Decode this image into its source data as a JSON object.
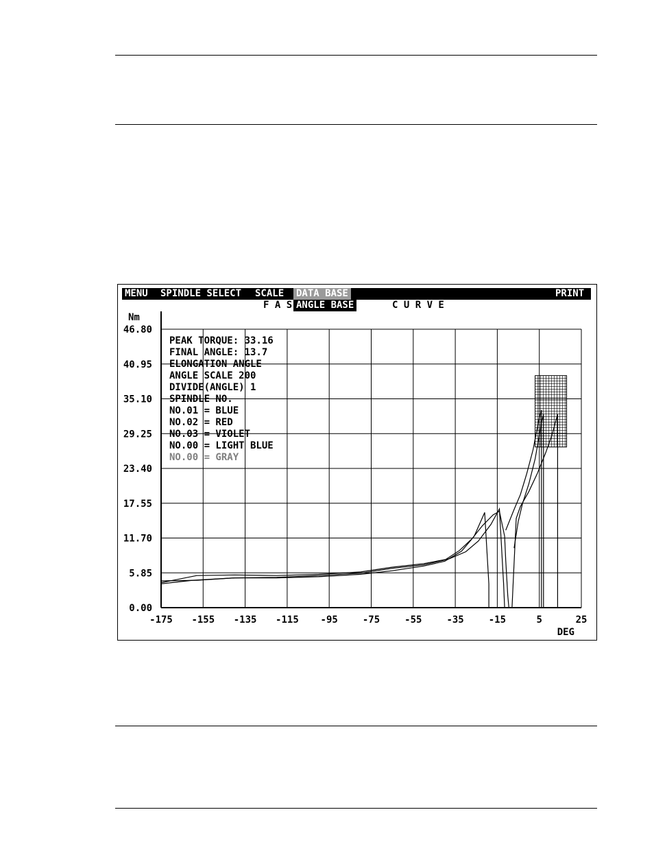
{
  "menu": {
    "items": [
      {
        "label": "MENU",
        "selected": false
      },
      {
        "label": "SPINDLE SELECT",
        "selected": false
      },
      {
        "label": "SCALE",
        "selected": false
      },
      {
        "label": "DATA BASE",
        "selected": true
      }
    ],
    "print_label": "PRINT"
  },
  "subtitle": {
    "left": "F A S",
    "mode": "ANGLE BASE",
    "right": "C U R V E"
  },
  "legend": {
    "lines": [
      {
        "text": "PEAK TORQUE:  33.16",
        "color": "#000000"
      },
      {
        "text": "FINAL ANGLE:   13.7",
        "color": "#000000"
      },
      {
        "text": "ELONGATION ANGLE",
        "color": "#000000"
      },
      {
        "text": "ANGLE  SCALE  200",
        "color": "#000000"
      },
      {
        "text": "DIVIDE(ANGLE)   1",
        "color": "#000000"
      },
      {
        "text": "SPINDLE NO.",
        "color": "#000000"
      },
      {
        "text": " NO.01 = BLUE",
        "color": "#000000"
      },
      {
        "text": " NO.02 = RED",
        "color": "#000000"
      },
      {
        "text": " NO.03 = VIOLET",
        "color": "#000000"
      },
      {
        "text": " NO.00 = LIGHT BLUE",
        "color": "#000000"
      },
      {
        "text": " NO.00 = GRAY",
        "color": "#808080"
      }
    ]
  },
  "chart_data": {
    "type": "line",
    "ylabel": "Nm",
    "xlabel": "DEG",
    "xlim": [
      -175,
      25
    ],
    "ylim": [
      0,
      46.8
    ],
    "x_ticks": [
      -175,
      -155,
      -135,
      -115,
      -95,
      -75,
      -55,
      -35,
      -15,
      5,
      25
    ],
    "y_ticks": [
      "0.00",
      "5.85",
      "11.70",
      "17.55",
      "23.40",
      "29.25",
      "35.10",
      "40.95",
      "46.80"
    ],
    "grid": true,
    "tolerance_box": {
      "x": [
        3,
        18
      ],
      "y": [
        27,
        39
      ]
    },
    "series": [
      {
        "color": "#000000",
        "points": [
          [
            -175,
            4.0
          ],
          [
            -160,
            4.6
          ],
          [
            -140,
            5.0
          ],
          [
            -120,
            5.0
          ],
          [
            -100,
            5.2
          ],
          [
            -80,
            5.6
          ],
          [
            -65,
            6.2
          ],
          [
            -50,
            7.0
          ],
          [
            -40,
            7.8
          ],
          [
            -32,
            9.5
          ],
          [
            -26,
            12.0
          ],
          [
            -21,
            16.0
          ],
          [
            -19,
            4.0
          ],
          [
            -19,
            0.0
          ]
        ]
      },
      {
        "color": "#000000",
        "points": [
          [
            -175,
            4.2
          ],
          [
            -158,
            5.4
          ],
          [
            -140,
            5.5
          ],
          [
            -120,
            5.4
          ],
          [
            -100,
            5.6
          ],
          [
            -80,
            6.0
          ],
          [
            -65,
            6.8
          ],
          [
            -50,
            7.4
          ],
          [
            -38,
            8.2
          ],
          [
            -30,
            9.4
          ],
          [
            -24,
            11.2
          ],
          [
            -18,
            14.0
          ],
          [
            -14,
            16.6
          ],
          [
            -12,
            4.0
          ],
          [
            -11.5,
            0.0
          ]
        ]
      },
      {
        "color": "#000000",
        "points": [
          [
            -175,
            4.5
          ],
          [
            -158,
            4.6
          ],
          [
            -140,
            5.0
          ],
          [
            -120,
            5.1
          ],
          [
            -100,
            5.4
          ],
          [
            -80,
            5.8
          ],
          [
            -65,
            6.6
          ],
          [
            -50,
            7.2
          ],
          [
            -40,
            8.0
          ],
          [
            -33,
            9.6
          ],
          [
            -27,
            11.6
          ],
          [
            -22,
            13.8
          ],
          [
            -17,
            15.6
          ],
          [
            -14,
            16.2
          ],
          [
            -11.5,
            12.0
          ],
          [
            -11,
            8.0
          ],
          [
            -10,
            2.0
          ],
          [
            -9.5,
            0.0
          ]
        ]
      },
      {
        "color": "#000000",
        "points": [
          [
            -11,
            13.0
          ],
          [
            -7,
            16.5
          ],
          [
            -4,
            19.0
          ],
          [
            -1,
            22.5
          ],
          [
            2,
            26.5
          ],
          [
            5,
            32.0
          ],
          [
            6,
            33.2
          ],
          [
            6,
            0.0
          ]
        ]
      },
      {
        "color": "#000000",
        "points": [
          [
            -8,
            0.0
          ],
          [
            -7.2,
            6.0
          ],
          [
            -6,
            15.0
          ],
          [
            -4,
            17.0
          ],
          [
            0,
            19.5
          ],
          [
            4,
            22.5
          ],
          [
            8,
            26.0
          ],
          [
            11,
            29.0
          ],
          [
            13.7,
            32.5
          ],
          [
            13.7,
            0.0
          ]
        ]
      },
      {
        "color": "#000000",
        "points": [
          [
            -7,
            10.0
          ],
          [
            -5,
            14.5
          ],
          [
            -3,
            17.5
          ],
          [
            0,
            20.8
          ],
          [
            3,
            25.0
          ],
          [
            6,
            31.0
          ],
          [
            7,
            32.5
          ],
          [
            7,
            0.0
          ]
        ]
      }
    ]
  }
}
